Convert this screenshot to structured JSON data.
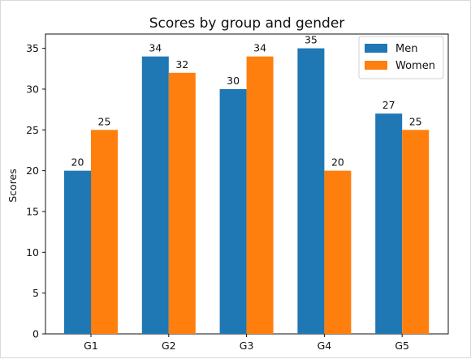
{
  "chart_data": {
    "type": "bar",
    "title": "Scores by group and gender",
    "xlabel": "",
    "ylabel": "Scores",
    "categories": [
      "G1",
      "G2",
      "G3",
      "G4",
      "G5"
    ],
    "series": [
      {
        "name": "Men",
        "values": [
          20,
          34,
          30,
          35,
          27
        ],
        "color": "#1f77b4"
      },
      {
        "name": "Women",
        "values": [
          25,
          32,
          34,
          20,
          25
        ],
        "color": "#ff7f0e"
      }
    ],
    "ylim": [
      0,
      36.75
    ],
    "yticks": [
      0,
      5,
      10,
      15,
      20,
      25,
      30,
      35
    ],
    "legend_position": "top-right",
    "grid": false
  }
}
